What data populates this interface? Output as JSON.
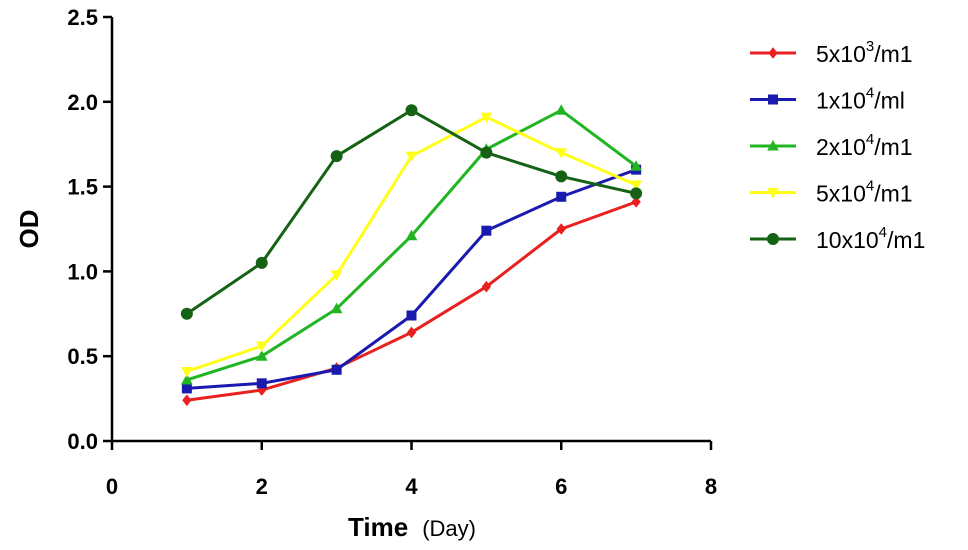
{
  "chart_data": {
    "type": "line",
    "title": "",
    "xlabel": "Time",
    "xlabel_unit": "(Day)",
    "ylabel": "OD",
    "xlim": [
      0,
      8
    ],
    "ylim": [
      0.0,
      2.5
    ],
    "xticks": [
      0,
      2,
      4,
      6,
      8
    ],
    "xtick_labels": [
      "0",
      "2",
      "4",
      "6",
      "8"
    ],
    "yticks": [
      0.0,
      0.5,
      1.0,
      1.5,
      2.0,
      2.5
    ],
    "ytick_labels": [
      "0.0",
      "0.5",
      "1.0",
      "1.5",
      "2.0",
      "2.5"
    ],
    "grid": false,
    "legend_position": "right",
    "x": [
      1,
      2,
      3,
      4,
      5,
      6,
      7
    ],
    "series": [
      {
        "name": "5x10^3/m1",
        "label_base": "5x10",
        "label_exp": "3",
        "label_unit": "/m1",
        "color": "#e8201f",
        "marker": "diamond",
        "values": [
          0.24,
          0.3,
          0.43,
          0.64,
          0.91,
          1.25,
          1.41
        ]
      },
      {
        "name": "1x10^4/ml",
        "label_base": "1x10",
        "label_exp": "4",
        "label_unit": "/ml",
        "color": "#1a1aae",
        "marker": "square",
        "values": [
          0.31,
          0.34,
          0.42,
          0.74,
          1.24,
          1.44,
          1.6
        ]
      },
      {
        "name": "2x10^4/m1",
        "label_base": "2x10",
        "label_exp": "4",
        "label_unit": "/m1",
        "color": "#22b522",
        "marker": "triangle",
        "values": [
          0.36,
          0.5,
          0.78,
          1.21,
          1.72,
          1.95,
          1.62
        ]
      },
      {
        "name": "5x10^4/m1",
        "label_base": "5x10",
        "label_exp": "4",
        "label_unit": "/m1",
        "color": "#ffff1a",
        "marker": "triangle-down",
        "values": [
          0.41,
          0.56,
          0.98,
          1.68,
          1.91,
          1.7,
          1.51
        ]
      },
      {
        "name": "10x10^4/m1",
        "label_base": "10x10",
        "label_exp": "4",
        "label_unit": "/m1",
        "color": "#156215",
        "marker": "circle",
        "values": [
          0.75,
          1.05,
          1.68,
          1.95,
          1.7,
          1.56,
          1.46
        ]
      }
    ]
  }
}
